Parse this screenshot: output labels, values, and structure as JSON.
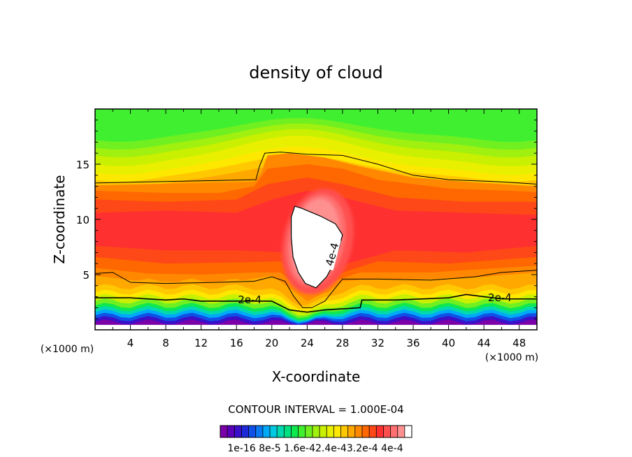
{
  "chart_data": {
    "type": "heatmap",
    "title": "density of cloud",
    "xlabel": "X-coordinate",
    "ylabel": "Z-coordinate",
    "x_unit_left": "(×1000 m)",
    "x_unit_right": "(×1000 m)",
    "xlim": [
      0,
      50
    ],
    "ylim": [
      0,
      20
    ],
    "x_ticks": [
      4,
      8,
      12,
      16,
      20,
      24,
      28,
      32,
      36,
      40,
      44,
      48
    ],
    "y_ticks": [
      5,
      10,
      15
    ],
    "contour_interval_text": "CONTOUR INTERVAL = 1.000E-04",
    "contour_labels": [
      {
        "text": "2e-4",
        "x": 17.5,
        "z": 2.6
      },
      {
        "text": "2e-4",
        "x": 45.8,
        "z": 2.8
      },
      {
        "text": "4e-4",
        "x": 27.0,
        "z": 6.8
      }
    ],
    "colorbar": {
      "min": 1e-16,
      "max": 0.00044,
      "tick_labels": [
        "1e-16",
        "8e-5",
        "1.6e-4",
        "2.4e-4",
        "3.2e-4",
        "4e-4"
      ],
      "tick_text": "1e-16 8e-5 1.6e-42.4e-43.2e-4 4e-4",
      "colors": [
        "#7a00a8",
        "#5a00b8",
        "#3a10c8",
        "#1e2ad8",
        "#1050e6",
        "#0a78f0",
        "#00a8f8",
        "#00c8e0",
        "#00d8b0",
        "#00e080",
        "#10e850",
        "#40f030",
        "#70f020",
        "#a0f010",
        "#c8f000",
        "#e8f000",
        "#ffe800",
        "#ffc800",
        "#ffa800",
        "#ff8800",
        "#ff6800",
        "#ff4818",
        "#ff3030",
        "#ff5050",
        "#ff7070",
        "#ff9090",
        "#ffffff"
      ]
    },
    "field_levels": [
      {
        "x": 0,
        "z": 19.5,
        "v": 0.00021
      }
    ],
    "colors": {
      "frame": "#000000",
      "background": "#ffffff",
      "peak": "#ffffff"
    }
  }
}
